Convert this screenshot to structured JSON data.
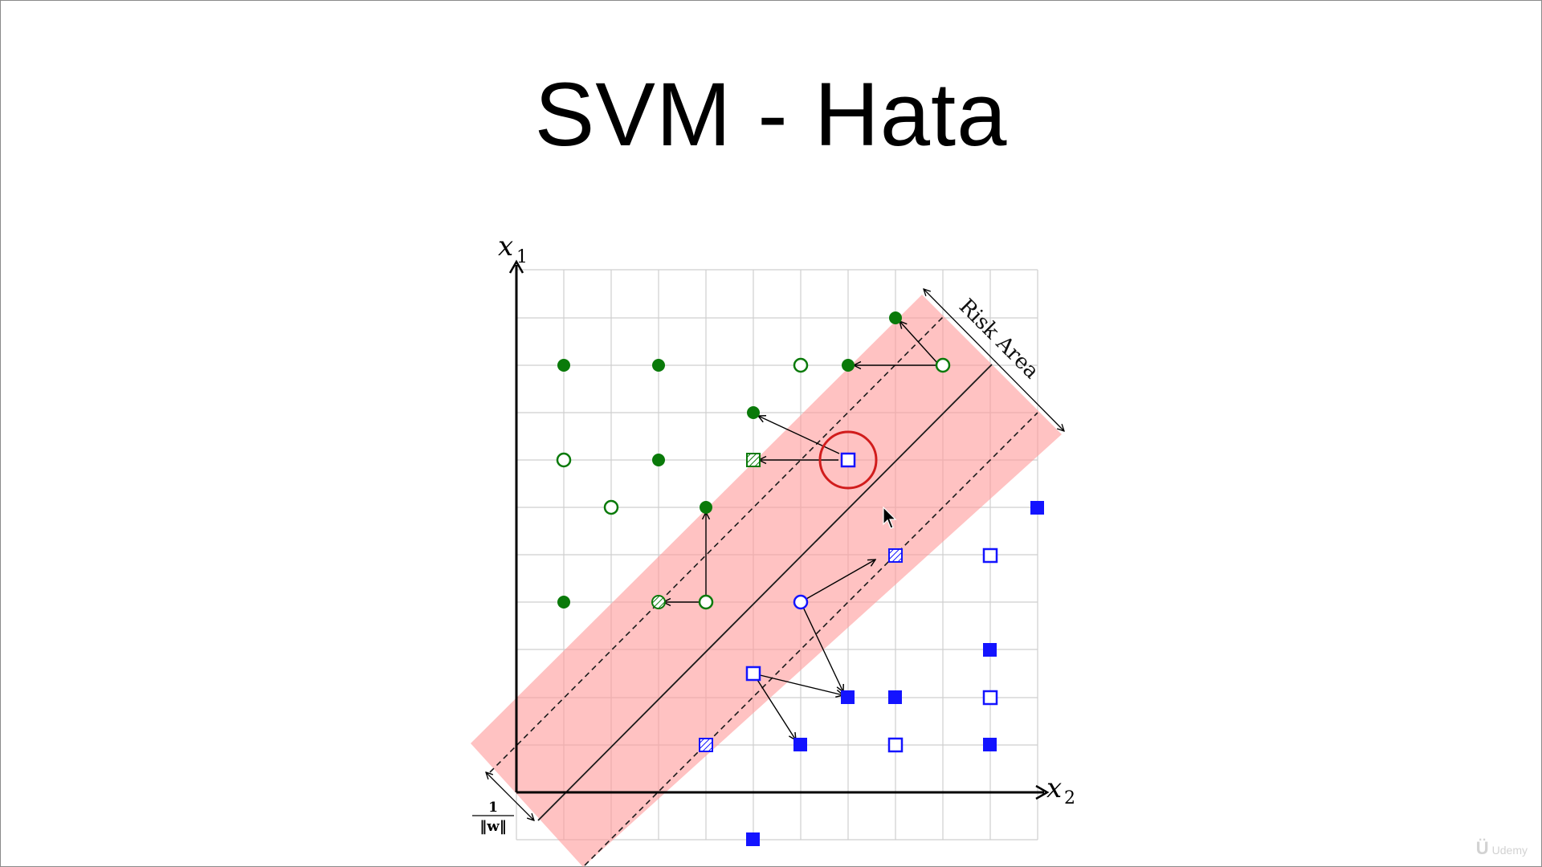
{
  "title": "SVM - Hata",
  "diagram": {
    "axis_y_label": "x",
    "axis_y_sub": "1",
    "axis_x_label": "x",
    "axis_x_sub": "2",
    "margin_num": "1",
    "margin_den": "‖w‖",
    "risk_label": "Risk Area"
  },
  "colors": {
    "green": "#0a7a0a",
    "blue": "#1414ff",
    "risk_band": "#ffc4c4",
    "highlight": "#d11c1c",
    "grid": "#cfcfcf"
  },
  "watermark": {
    "logo": "Ü",
    "text": "Udemy"
  }
}
